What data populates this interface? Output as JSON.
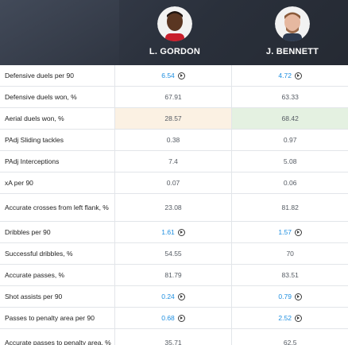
{
  "players": [
    {
      "name": "L. GORDON"
    },
    {
      "name": "J. BENNETT"
    }
  ],
  "stats": [
    {
      "label": "Defensive duels per 90",
      "v1": "6.54",
      "v2": "4.72",
      "clickable": true
    },
    {
      "label": "Defensive duels won, %",
      "v1": "67.91",
      "v2": "63.33"
    },
    {
      "label": "Aerial duels won, %",
      "v1": "28.57",
      "v2": "68.42",
      "highlight": true
    },
    {
      "label": "PAdj Sliding tackles",
      "v1": "0.38",
      "v2": "0.97"
    },
    {
      "label": "PAdj Interceptions",
      "v1": "7.4",
      "v2": "5.08"
    },
    {
      "label": "xA per 90",
      "v1": "0.07",
      "v2": "0.06"
    },
    {
      "label": "Accurate crosses from left flank, %",
      "v1": "23.08",
      "v2": "81.82",
      "tall": true
    },
    {
      "label": "Dribbles per 90",
      "v1": "1.61",
      "v2": "1.57",
      "clickable": true
    },
    {
      "label": "Successful dribbles, %",
      "v1": "54.55",
      "v2": "70"
    },
    {
      "label": "Accurate passes, %",
      "v1": "81.79",
      "v2": "83.51"
    },
    {
      "label": "Shot assists per 90",
      "v1": "0.24",
      "v2": "0.79",
      "clickable": true
    },
    {
      "label": "Passes to penalty area per 90",
      "v1": "0.68",
      "v2": "2.52",
      "clickable": true
    },
    {
      "label": "Accurate passes to penalty area, %",
      "v1": "35.71",
      "v2": "62.5",
      "tall": true
    }
  ],
  "colors": {
    "link": "#1e8ee0",
    "header_bg": "#2a303b",
    "low_cell": "#fbf1e3",
    "high_cell": "#e4f1e1"
  },
  "icons": {
    "play": "play-circle-icon"
  }
}
